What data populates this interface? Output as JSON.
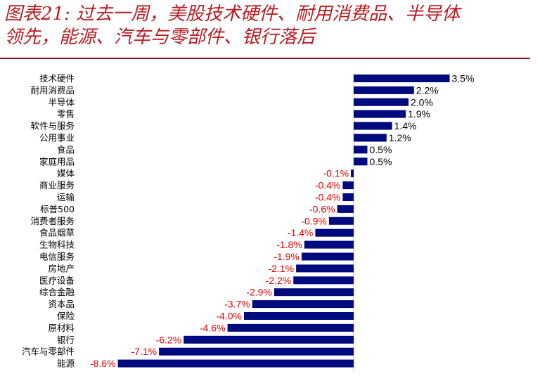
{
  "title": {
    "line1": "图表21: 过去一周，美股技术硬件、耐用消费品、半导体",
    "line2": "领先，能源、汽车与零部件、银行落后"
  },
  "colors": {
    "title": "#b81c22",
    "divider": "#8c1a1f",
    "bar": "#000a7f",
    "positive_label": "#000000",
    "negative_label": "#e00000"
  },
  "chart_data": {
    "type": "bar",
    "orientation": "horizontal",
    "unit": "%",
    "categories": [
      "技术硬件",
      "耐用消费品",
      "半导体",
      "零售",
      "软件与服务",
      "公用事业",
      "食品",
      "家庭用品",
      "媒体",
      "商业服务",
      "运输",
      "标普500",
      "消费者服务",
      "食品烟草",
      "生物科技",
      "电信服务",
      "房地产",
      "医疗设备",
      "综合金融",
      "资本品",
      "保险",
      "原材料",
      "银行",
      "汽车与零部件",
      "能源"
    ],
    "values": [
      3.5,
      2.2,
      2.0,
      1.9,
      1.4,
      1.2,
      0.5,
      0.5,
      -0.1,
      -0.4,
      -0.4,
      -0.6,
      -0.9,
      -1.4,
      -1.8,
      -1.9,
      -2.1,
      -2.2,
      -2.9,
      -3.7,
      -4.0,
      -4.6,
      -6.2,
      -7.1,
      -8.6
    ],
    "value_labels": [
      "3.5%",
      "2.2%",
      "2.0%",
      "1.9%",
      "1.4%",
      "1.2%",
      "0.5%",
      "0.5%",
      "-0.1%",
      "-0.4%",
      "-0.4%",
      "-0.6%",
      "-0.9%",
      "-1.4%",
      "-1.8%",
      "-1.9%",
      "-2.1%",
      "-2.2%",
      "-2.9%",
      "-3.7%",
      "-4.0%",
      "-4.6%",
      "-6.2%",
      "-7.1%",
      "-8.6%"
    ],
    "xlim": [
      -8.6,
      3.5
    ],
    "grid": false,
    "legend": "none"
  }
}
